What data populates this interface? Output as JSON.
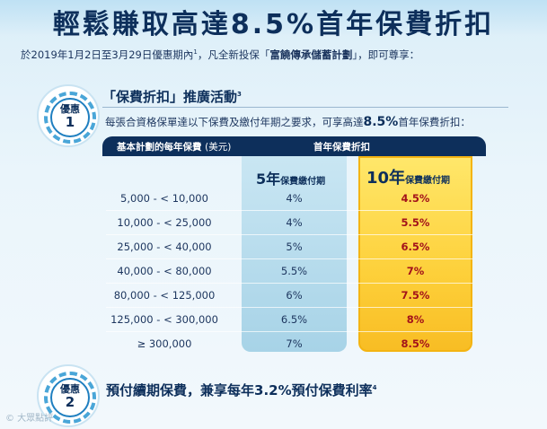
{
  "page": {
    "title": "輕鬆賺取高達8.5%首年保費折扣",
    "intro_prefix": "於2019年1月2日至3月29日優惠期內",
    "intro_sup": "1",
    "intro_middle": "，凡全新投保「",
    "intro_plan": "富饒傳承儲蓄計劃",
    "intro_suffix": "」，即可尊享："
  },
  "offer1": {
    "badge_word": "優惠",
    "badge_number": "1",
    "heading": "「保費折扣」推廣活動",
    "heading_sup": "3",
    "desc_prefix": "每張合資格保單達以下保費及繳付年期之要求，可享高達",
    "desc_highlight": "8.5%",
    "desc_suffix": "首年保費折扣："
  },
  "offer2": {
    "badge_word": "優惠",
    "badge_number": "2",
    "heading": "預付續期保費，兼享每年3.2%預付保費利率",
    "heading_sup": "4"
  },
  "watermark": "© 大眾點評",
  "chart_data": {
    "type": "table",
    "header_left": "基本計劃的每年保費",
    "header_left_unit": "(美元)",
    "header_right": "首年保費折扣",
    "columns": [
      {
        "big": "5年",
        "small": "保費繳付期"
      },
      {
        "big": "10年",
        "small": "保費繳付期"
      }
    ],
    "rows": [
      {
        "range": "5,000 - < 10,000",
        "term5": "4%",
        "term10": "4.5%"
      },
      {
        "range": "10,000 - < 25,000",
        "term5": "4%",
        "term10": "5.5%"
      },
      {
        "range": "25,000 - < 40,000",
        "term5": "5%",
        "term10": "6.5%"
      },
      {
        "range": "40,000 - < 80,000",
        "term5": "5.5%",
        "term10": "7%"
      },
      {
        "range": "80,000 - < 125,000",
        "term5": "6%",
        "term10": "7.5%"
      },
      {
        "range": "125,000 - <  300,000",
        "term5": "6.5%",
        "term10": "8%"
      },
      {
        "range": "≥ 300,000",
        "term5": "7%",
        "term10": "8.5%"
      }
    ],
    "colors": {
      "term5_bg": "#b9dcec",
      "term10_bg": "#fdd03a",
      "header_bg": "#0d2f5b",
      "highlight_text": "#a3121a"
    }
  }
}
